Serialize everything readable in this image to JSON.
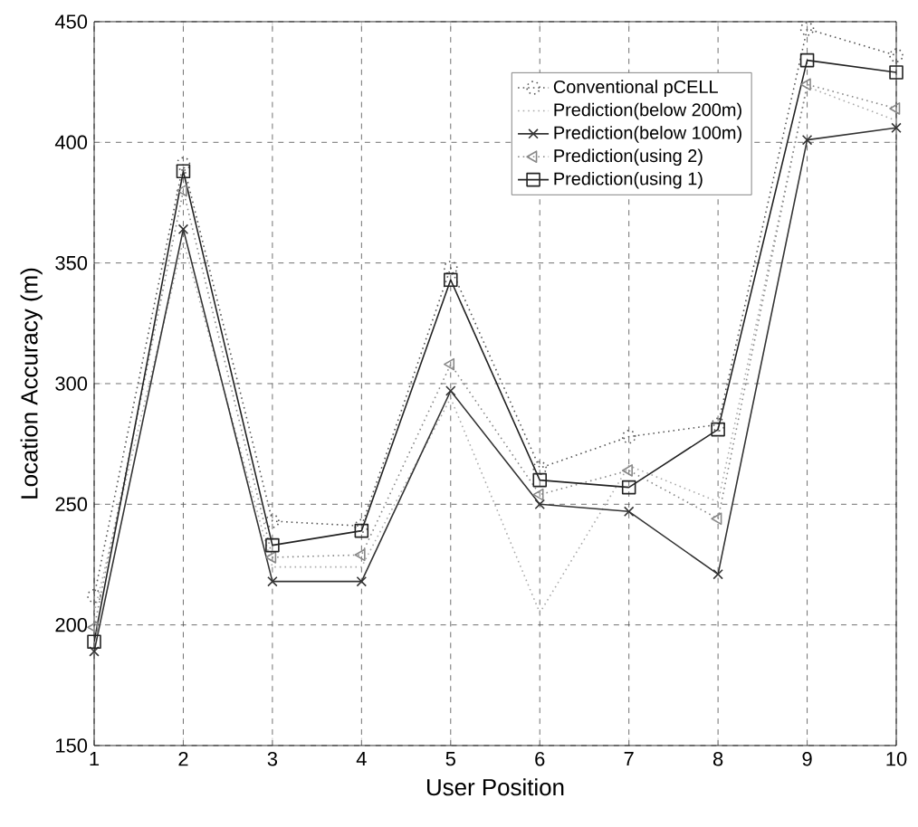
{
  "chart_data": {
    "type": "line",
    "xlabel": "User Position",
    "ylabel": "Location Accuracy (m)",
    "x": [
      1,
      2,
      3,
      4,
      5,
      6,
      7,
      8,
      9,
      10
    ],
    "xlim": [
      1,
      10
    ],
    "xticks": [
      1,
      2,
      3,
      4,
      5,
      6,
      7,
      8,
      9,
      10
    ],
    "ylim": [
      150,
      450
    ],
    "yticks": [
      150,
      200,
      250,
      300,
      350,
      400,
      450
    ],
    "grid": true,
    "legend": "top right",
    "series": [
      {
        "name": "Conventional pCELL",
        "color": "#555555",
        "marker": "circle",
        "line_style": "dotted",
        "values": [
          212,
          391,
          243,
          241,
          348,
          265,
          278,
          283,
          447,
          436
        ]
      },
      {
        "name": "Prediction(below 200m)",
        "color": "#aaaaaa",
        "marker": "none",
        "line_style": "dotted",
        "values": [
          205,
          359,
          224,
          224,
          294,
          205,
          266,
          251,
          423,
          409
        ]
      },
      {
        "name": "Prediction(below 100m)",
        "color": "#333333",
        "marker": "cross",
        "line_style": "solid",
        "values": [
          189,
          364,
          218,
          218,
          297,
          250,
          247,
          221,
          401,
          406
        ]
      },
      {
        "name": "Prediction(using 2)",
        "color": "#888888",
        "marker": "triangle",
        "line_style": "dotted",
        "values": [
          199,
          380,
          228,
          229,
          308,
          254,
          264,
          244,
          424,
          414
        ]
      },
      {
        "name": "Prediction(using 1)",
        "color": "#222222",
        "marker": "square",
        "line_style": "solid",
        "values": [
          193,
          388,
          233,
          239,
          343,
          260,
          257,
          281,
          434,
          429
        ]
      }
    ]
  }
}
